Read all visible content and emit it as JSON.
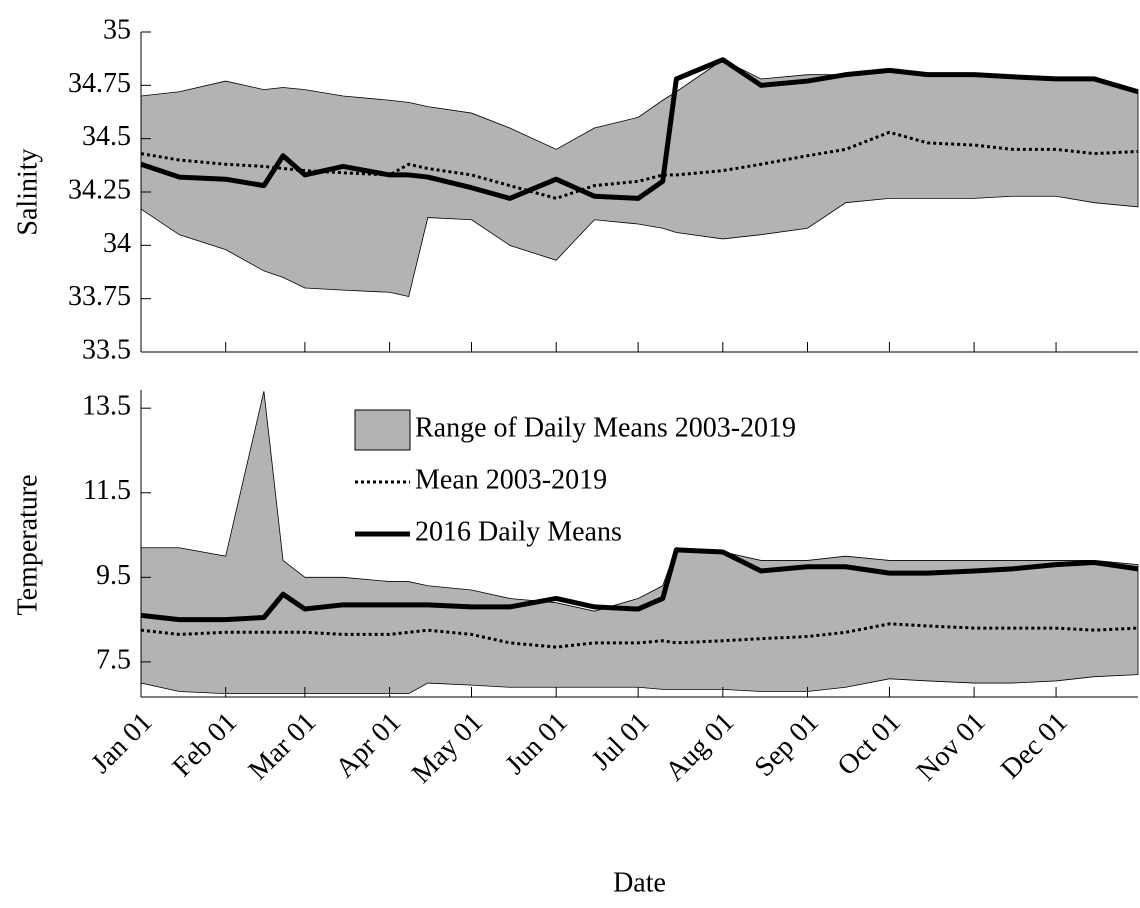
{
  "chart_data": [
    {
      "type": "band-line",
      "ylabel": "Salinity",
      "x": [
        "Jan 01",
        "Jan 15",
        "Feb 01",
        "Feb 15",
        "Feb 22",
        "Mar 01",
        "Mar 15",
        "Apr 01",
        "Apr 08",
        "Apr 15",
        "May 01",
        "May 15",
        "Jun 01",
        "Jun 15",
        "Jul 01",
        "Jul 10",
        "Jul 15",
        "Aug 01",
        "Aug 15",
        "Sep 01",
        "Sep 15",
        "Oct 01",
        "Oct 15",
        "Nov 01",
        "Nov 15",
        "Dec 01",
        "Dec 15",
        "Dec 31"
      ],
      "xlim": [
        "Jan 01",
        "Dec 31"
      ],
      "xticks": [
        "Jan 01",
        "Feb 01",
        "Mar 01",
        "Apr 01",
        "May 01",
        "Jun 01",
        "Jul 01",
        "Aug 01",
        "Sep 01",
        "Oct 01",
        "Nov 01",
        "Dec 01"
      ],
      "ylim": [
        33.5,
        35
      ],
      "yticks": [
        33.5,
        33.75,
        34,
        34.25,
        34.5,
        34.75,
        35
      ],
      "series": [
        {
          "color": "#b3b3b3",
          "style": "band",
          "values": [
            34.7,
            34.72,
            34.77,
            34.73,
            34.74,
            34.73,
            34.7,
            34.68,
            34.67,
            34.65,
            34.62,
            34.55,
            34.45,
            34.55,
            34.6,
            34.68,
            34.72,
            34.87,
            34.78,
            34.8,
            34.8,
            34.82,
            34.8,
            34.8,
            34.79,
            34.78,
            34.78,
            34.72
          ],
          "lower": [
            34.17,
            34.05,
            33.98,
            33.88,
            33.85,
            33.8,
            33.79,
            33.78,
            33.76,
            34.13,
            34.12,
            34.0,
            33.93,
            34.12,
            34.1,
            34.08,
            34.06,
            34.03,
            34.05,
            34.08,
            34.2,
            34.22,
            34.22,
            34.22,
            34.23,
            34.23,
            34.2,
            34.18
          ]
        },
        {
          "color": "#000000",
          "style": "dotted",
          "values": [
            34.43,
            34.4,
            34.38,
            34.37,
            34.36,
            34.35,
            34.34,
            34.33,
            34.38,
            34.36,
            34.33,
            34.28,
            34.22,
            34.28,
            34.3,
            34.33,
            34.33,
            34.35,
            34.38,
            34.42,
            34.45,
            34.53,
            34.48,
            34.47,
            34.45,
            34.45,
            34.43,
            34.44
          ]
        },
        {
          "color": "#000000",
          "style": "solid",
          "values": [
            34.38,
            34.32,
            34.31,
            34.28,
            34.42,
            34.33,
            34.37,
            34.33,
            34.33,
            34.32,
            34.27,
            34.22,
            34.31,
            34.23,
            34.22,
            34.3,
            34.78,
            34.87,
            34.75,
            34.77,
            34.8,
            34.82,
            34.8,
            34.8,
            34.79,
            34.78,
            34.78,
            34.72
          ]
        }
      ]
    },
    {
      "type": "band-line",
      "ylabel": "Temperature",
      "xlabel": "Date",
      "legend": "upper center",
      "x": [
        "Jan 01",
        "Jan 15",
        "Feb 01",
        "Feb 15",
        "Feb 22",
        "Mar 01",
        "Mar 15",
        "Apr 01",
        "Apr 08",
        "Apr 15",
        "May 01",
        "May 15",
        "Jun 01",
        "Jun 15",
        "Jul 01",
        "Jul 10",
        "Jul 15",
        "Aug 01",
        "Aug 15",
        "Sep 01",
        "Sep 15",
        "Oct 01",
        "Oct 15",
        "Nov 01",
        "Nov 15",
        "Dec 01",
        "Dec 15",
        "Dec 31"
      ],
      "xlim": [
        "Jan 01",
        "Dec 31"
      ],
      "xticks": [
        "Jan 01",
        "Feb 01",
        "Mar 01",
        "Apr 01",
        "May 01",
        "Jun 01",
        "Jul 01",
        "Aug 01",
        "Sep 01",
        "Oct 01",
        "Nov 01",
        "Dec 01"
      ],
      "ylim": [
        6.67,
        13.93
      ],
      "yticks": [
        7.5,
        9.5,
        11.5,
        13.5
      ],
      "series": [
        {
          "name": "Range of Daily Means 2003-2019",
          "color": "#b3b3b3",
          "style": "band",
          "values": [
            10.2,
            10.2,
            10.0,
            13.9,
            9.9,
            9.5,
            9.5,
            9.4,
            9.4,
            9.3,
            9.2,
            9.0,
            8.9,
            8.7,
            9.0,
            9.3,
            10.2,
            10.1,
            9.9,
            9.9,
            10.0,
            9.9,
            9.9,
            9.9,
            9.9,
            9.9,
            9.9,
            9.8
          ],
          "lower": [
            7.0,
            6.8,
            6.75,
            6.75,
            6.75,
            6.75,
            6.75,
            6.75,
            6.75,
            7.0,
            6.95,
            6.9,
            6.9,
            6.9,
            6.9,
            6.85,
            6.85,
            6.85,
            6.8,
            6.8,
            6.9,
            7.1,
            7.05,
            7.0,
            7.0,
            7.05,
            7.15,
            7.2
          ]
        },
        {
          "name": "Mean 2003-2019",
          "color": "#000000",
          "style": "dotted",
          "values": [
            8.25,
            8.15,
            8.2,
            8.2,
            8.2,
            8.2,
            8.15,
            8.15,
            8.2,
            8.25,
            8.15,
            7.95,
            7.85,
            7.95,
            7.95,
            8.0,
            7.95,
            8.0,
            8.05,
            8.1,
            8.2,
            8.4,
            8.35,
            8.3,
            8.3,
            8.3,
            8.25,
            8.3
          ]
        },
        {
          "name": "2016 Daily Means",
          "color": "#000000",
          "style": "solid",
          "values": [
            8.6,
            8.5,
            8.5,
            8.55,
            9.1,
            8.75,
            8.85,
            8.85,
            8.85,
            8.85,
            8.8,
            8.8,
            9.0,
            8.8,
            8.75,
            9.0,
            10.15,
            10.1,
            9.65,
            9.75,
            9.75,
            9.6,
            9.6,
            9.65,
            9.7,
            9.8,
            9.85,
            9.7
          ]
        }
      ]
    }
  ]
}
